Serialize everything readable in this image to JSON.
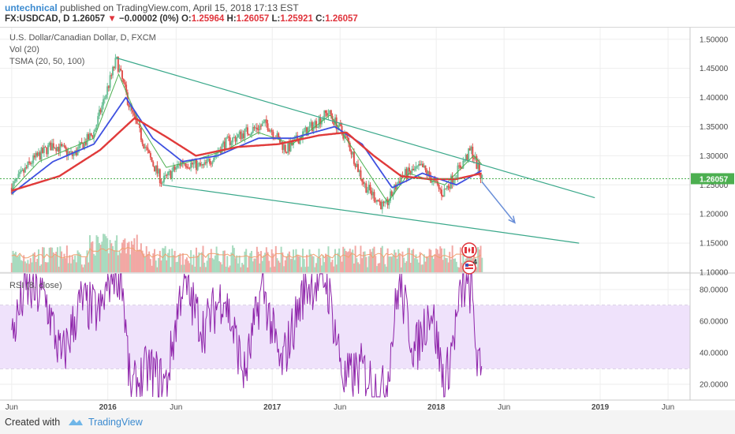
{
  "header": {
    "author": "untechnical",
    "published_text": "published on TradingView.com, April 15, 2018 17:13 EST",
    "symbol": "FX:USDCAD, D",
    "last": "1.26057",
    "change_arrow": "▼",
    "change": "−0.00002 (0%)",
    "o_label": "O:",
    "o": "1.25964",
    "h_label": "H:",
    "h": "1.26057",
    "l_label": "L:",
    "l": "1.25921",
    "c_label": "C:",
    "c": "1.26057"
  },
  "legend": {
    "main": "U.S. Dollar/Canadian Dollar, D, FXCM",
    "vol": "Vol (20)",
    "tsma": "TSMA (20, 50, 100)",
    "rsi": "RSI (8, close)"
  },
  "footer": {
    "created": "Created with",
    "brand": "TradingView"
  },
  "colors": {
    "up": "#6bbf96",
    "down": "#e0534f",
    "sma20": "#4caf50",
    "sma50": "#3f51e0",
    "sma100": "#e03a3a",
    "trend": "#3aa88a",
    "rsi": "#8e24aa",
    "rsi_band": "#efe2fb",
    "price_tag": "#4caf50",
    "arrow": "#6a8fd8"
  },
  "icons": [
    "canada-flag-icon",
    "us-flag-icon"
  ],
  "event_count": "4",
  "chart_data": {
    "type": "line",
    "title": "U.S. Dollar/Canadian Dollar, D, FXCM",
    "x_ticks": [
      "Jun",
      "2016",
      "Jun",
      "2017",
      "Jun",
      "2018",
      "Jun",
      "2019",
      "Jun"
    ],
    "price_ylim": [
      1.1,
      1.52
    ],
    "price_ticks": [
      "1.50000",
      "1.45000",
      "1.40000",
      "1.35000",
      "1.30000",
      "1.25000",
      "1.20000",
      "1.15000",
      "1.10000"
    ],
    "last_price": "1.26057",
    "price_path": [
      [
        "2015-06-01",
        1.245
      ],
      [
        "2015-07-15",
        1.29
      ],
      [
        "2015-09-01",
        1.32
      ],
      [
        "2015-10-15",
        1.3
      ],
      [
        "2015-12-01",
        1.34
      ],
      [
        "2016-01-20",
        1.465
      ],
      [
        "2016-02-20",
        1.38
      ],
      [
        "2016-04-01",
        1.3
      ],
      [
        "2016-05-01",
        1.255
      ],
      [
        "2016-06-15",
        1.29
      ],
      [
        "2016-08-01",
        1.28
      ],
      [
        "2016-09-15",
        1.32
      ],
      [
        "2016-11-01",
        1.34
      ],
      [
        "2016-12-20",
        1.355
      ],
      [
        "2017-02-01",
        1.31
      ],
      [
        "2017-03-15",
        1.34
      ],
      [
        "2017-05-05",
        1.375
      ],
      [
        "2017-06-15",
        1.33
      ],
      [
        "2017-07-25",
        1.25
      ],
      [
        "2017-09-08",
        1.21
      ],
      [
        "2017-10-15",
        1.265
      ],
      [
        "2017-12-01",
        1.28
      ],
      [
        "2018-01-15",
        1.235
      ],
      [
        "2018-03-20",
        1.31
      ],
      [
        "2018-04-13",
        1.2606
      ]
    ],
    "sma20_path": [
      [
        "2015-06-01",
        1.24
      ],
      [
        "2015-08-01",
        1.29
      ],
      [
        "2015-10-01",
        1.31
      ],
      [
        "2015-12-01",
        1.33
      ],
      [
        "2016-01-25",
        1.44
      ],
      [
        "2016-03-15",
        1.35
      ],
      [
        "2016-05-10",
        1.28
      ],
      [
        "2016-07-01",
        1.29
      ],
      [
        "2016-09-20",
        1.31
      ],
      [
        "2016-12-01",
        1.34
      ],
      [
        "2017-02-15",
        1.32
      ],
      [
        "2017-05-10",
        1.37
      ],
      [
        "2017-07-01",
        1.31
      ],
      [
        "2017-09-15",
        1.22
      ],
      [
        "2017-11-01",
        1.27
      ],
      [
        "2018-01-20",
        1.25
      ],
      [
        "2018-03-25",
        1.3
      ],
      [
        "2018-04-13",
        1.285
      ]
    ],
    "sma50_path": [
      [
        "2015-06-01",
        1.235
      ],
      [
        "2015-09-01",
        1.29
      ],
      [
        "2015-12-01",
        1.32
      ],
      [
        "2016-02-10",
        1.4
      ],
      [
        "2016-04-10",
        1.33
      ],
      [
        "2016-06-15",
        1.29
      ],
      [
        "2016-09-01",
        1.3
      ],
      [
        "2016-12-01",
        1.33
      ],
      [
        "2017-02-15",
        1.33
      ],
      [
        "2017-05-20",
        1.35
      ],
      [
        "2017-07-20",
        1.32
      ],
      [
        "2017-09-25",
        1.245
      ],
      [
        "2017-12-01",
        1.27
      ],
      [
        "2018-02-15",
        1.25
      ],
      [
        "2018-04-13",
        1.275
      ]
    ],
    "sma100_path": [
      [
        "2015-06-01",
        1.24
      ],
      [
        "2015-09-15",
        1.265
      ],
      [
        "2015-12-15",
        1.31
      ],
      [
        "2016-03-01",
        1.365
      ],
      [
        "2016-05-15",
        1.33
      ],
      [
        "2016-07-15",
        1.3
      ],
      [
        "2016-10-15",
        1.315
      ],
      [
        "2017-01-15",
        1.32
      ],
      [
        "2017-04-15",
        1.335
      ],
      [
        "2017-06-15",
        1.34
      ],
      [
        "2017-08-15",
        1.3
      ],
      [
        "2017-10-15",
        1.265
      ],
      [
        "2017-12-15",
        1.26
      ],
      [
        "2018-02-15",
        1.26
      ],
      [
        "2018-04-13",
        1.27
      ]
    ],
    "trendlines": [
      {
        "name": "upper",
        "from": [
          "2016-01-20",
          1.468
        ],
        "to": [
          "2018-12-20",
          1.228
        ]
      },
      {
        "name": "lower",
        "from": [
          "2016-05-01",
          1.25
        ],
        "to": [
          "2018-11-15",
          1.15
        ]
      }
    ],
    "projection_arrow": {
      "from": [
        "2018-04-13",
        1.255
      ],
      "to": [
        "2018-06-25",
        1.185
      ]
    },
    "volume_window": 20,
    "rsi": {
      "ylim": [
        10,
        90
      ],
      "ticks": [
        "80.0000",
        "60.0000",
        "40.0000",
        "20.0000"
      ],
      "upper_band": 70,
      "lower_band": 30,
      "key_points": [
        [
          "2015-06-01",
          50
        ],
        [
          "2015-07-01",
          80
        ],
        [
          "2015-08-15",
          75
        ],
        [
          "2015-09-20",
          35
        ],
        [
          "2015-11-01",
          72
        ],
        [
          "2015-12-15",
          65
        ],
        [
          "2016-01-10",
          92
        ],
        [
          "2016-02-01",
          90
        ],
        [
          "2016-02-20",
          15
        ],
        [
          "2016-04-01",
          30
        ],
        [
          "2016-05-10",
          20
        ],
        [
          "2016-06-15",
          85
        ],
        [
          "2016-08-01",
          55
        ],
        [
          "2016-09-15",
          78
        ],
        [
          "2016-11-01",
          25
        ],
        [
          "2016-12-10",
          83
        ],
        [
          "2017-01-20",
          30
        ],
        [
          "2017-03-15",
          82
        ],
        [
          "2017-05-01",
          87
        ],
        [
          "2017-06-10",
          22
        ],
        [
          "2017-07-20",
          30
        ],
        [
          "2017-08-20",
          18
        ],
        [
          "2017-09-10",
          15
        ],
        [
          "2017-10-10",
          85
        ],
        [
          "2017-11-15",
          40
        ],
        [
          "2017-12-20",
          70
        ],
        [
          "2018-01-20",
          18
        ],
        [
          "2018-03-01",
          82
        ],
        [
          "2018-03-20",
          80
        ],
        [
          "2018-04-05",
          28
        ],
        [
          "2018-04-13",
          28
        ]
      ]
    }
  }
}
